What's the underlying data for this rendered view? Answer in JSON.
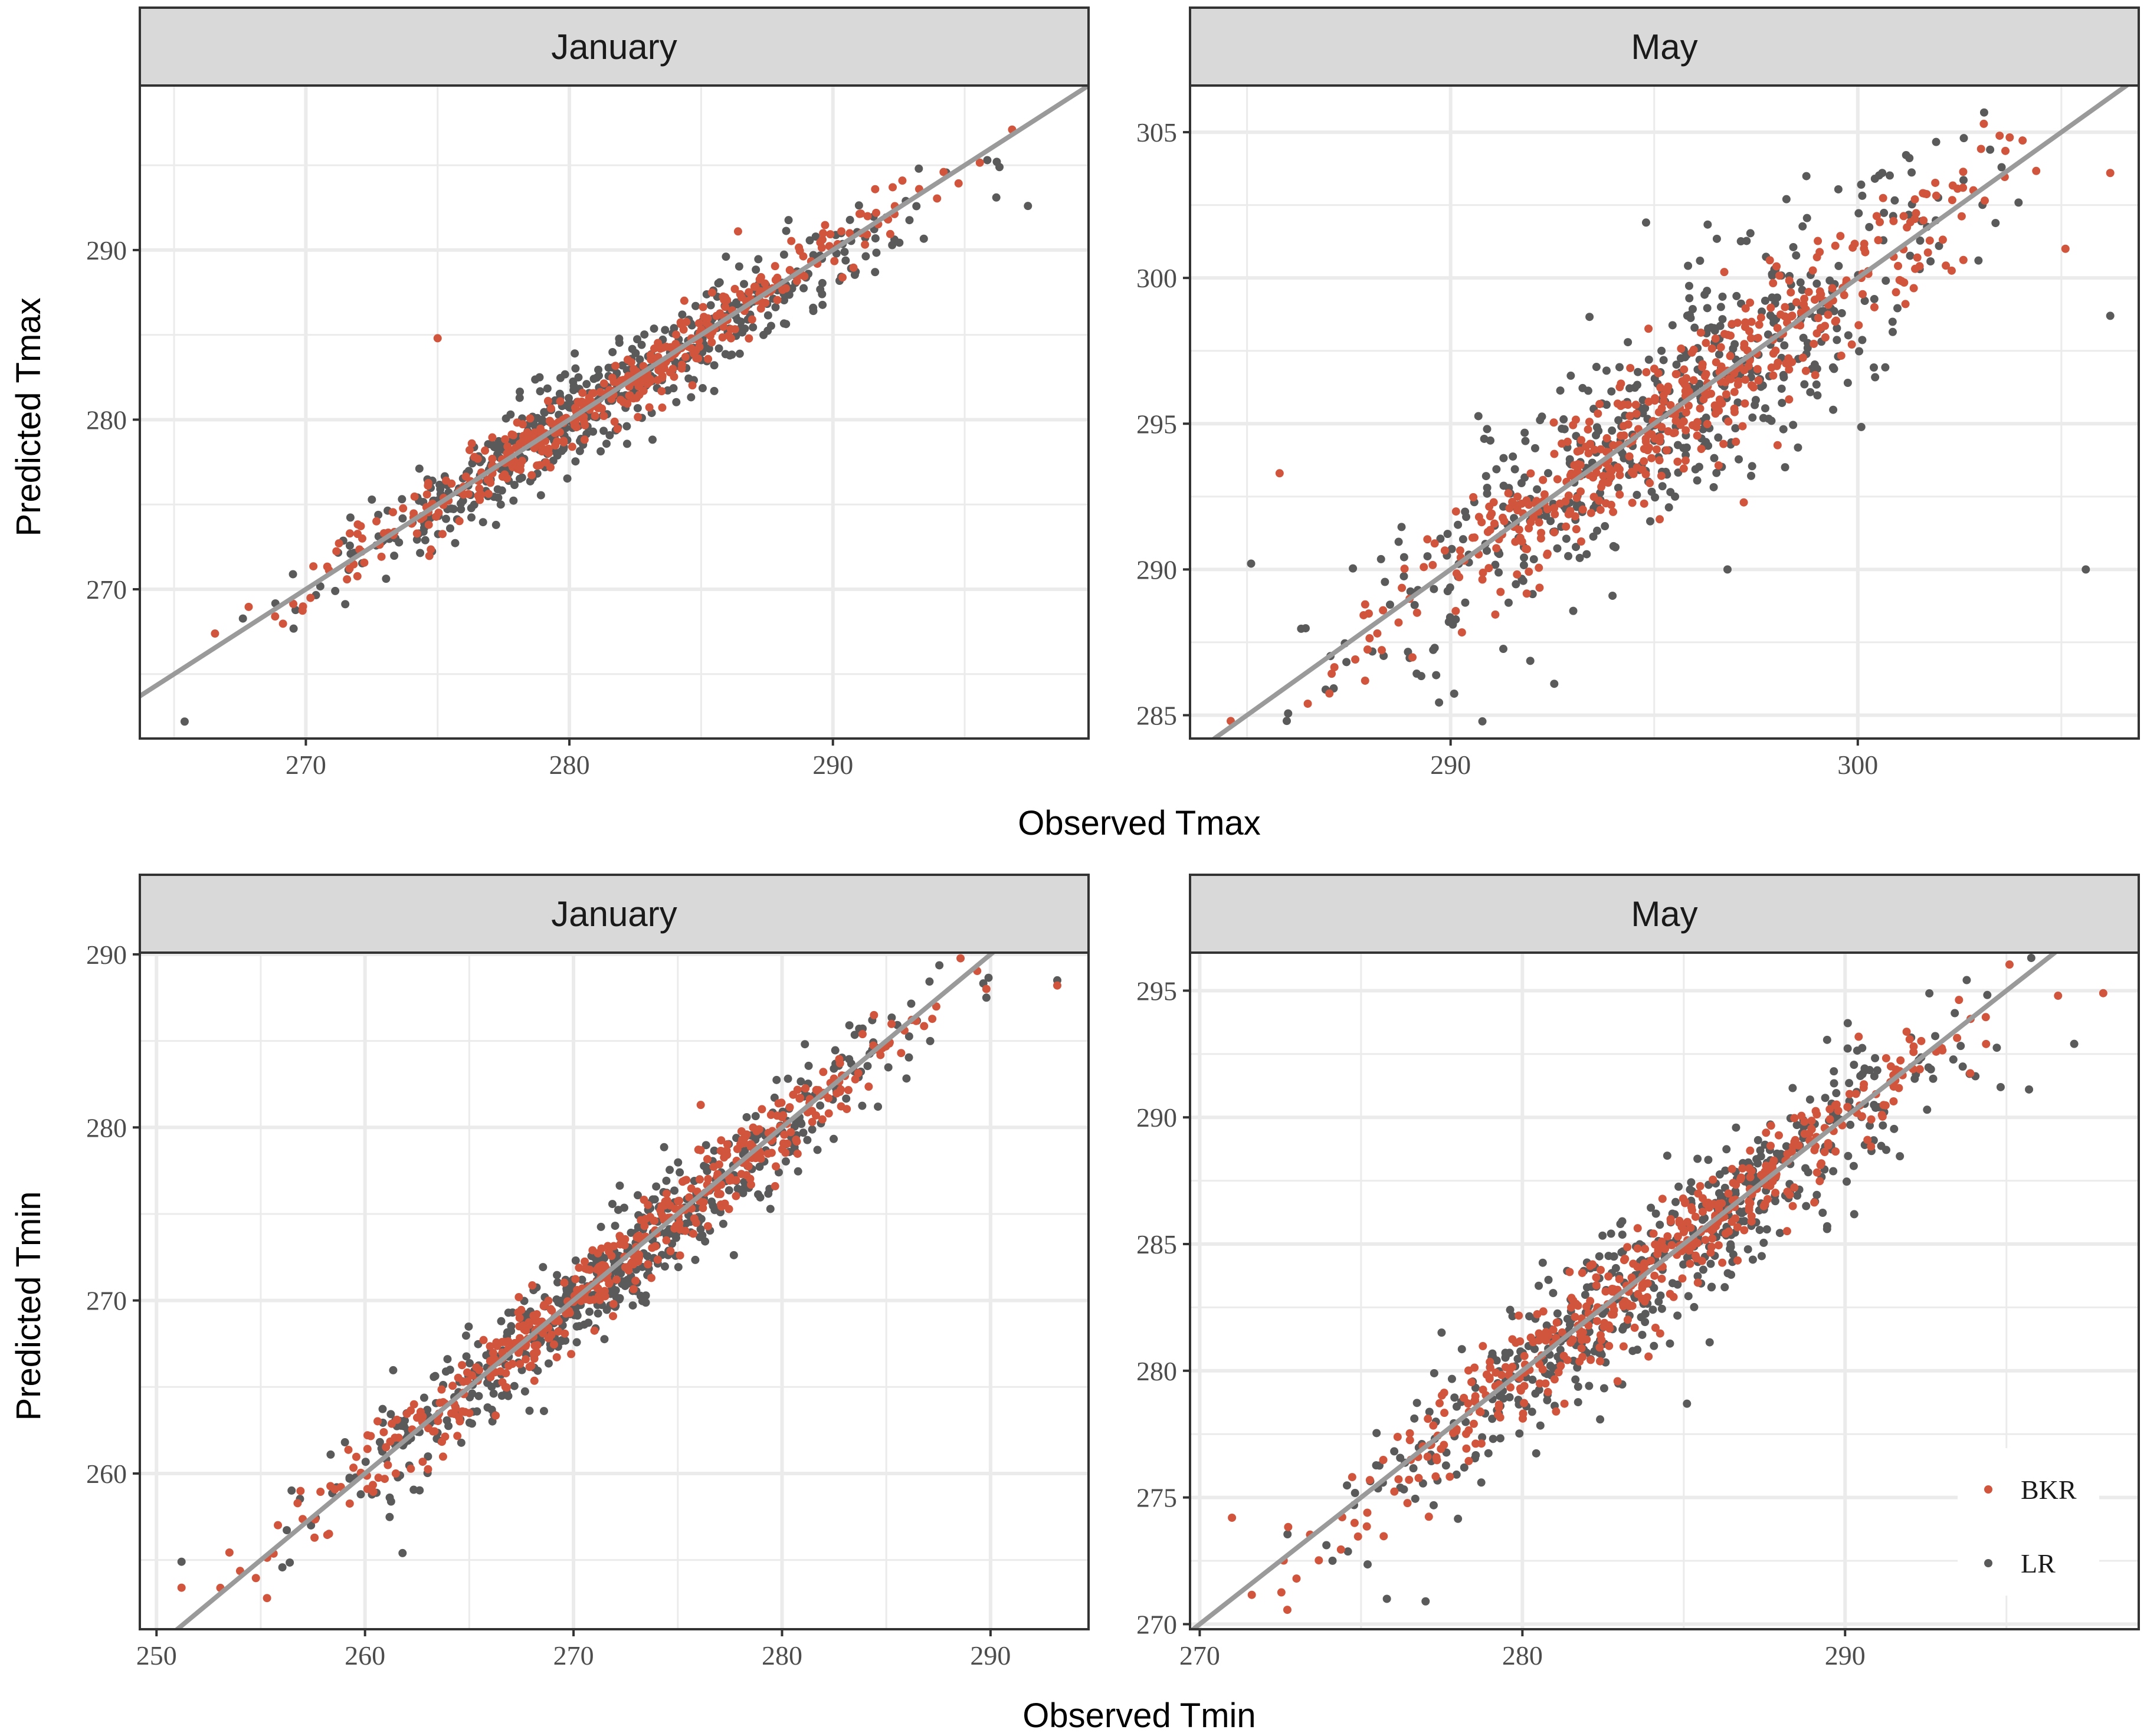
{
  "colors": {
    "BKR": "#d1553d",
    "LR": "#5a5a5a",
    "identity_line": "#9a9a9a",
    "grid": "#ebebeb",
    "strip_fill": "#d9d9d9",
    "border": "#333333"
  },
  "legend": {
    "position": "bottom-right of lower-right panel",
    "items": [
      {
        "label": "BKR",
        "color": "#d1553d"
      },
      {
        "label": "LR",
        "color": "#5a5a5a"
      }
    ]
  },
  "rows": [
    {
      "xlabel": "Observed Tmax",
      "ylabel": "Predicted Tmax"
    },
    {
      "xlabel": "Observed Tmin",
      "ylabel": "Predicted Tmin"
    }
  ],
  "chart_data": [
    {
      "type": "scatter",
      "title": "January",
      "variable": "Tmax",
      "xlim": [
        263.7,
        299.7
      ],
      "ylim": [
        261.2,
        299.7
      ],
      "xticks": [
        270,
        280,
        290
      ],
      "yticks": [
        270,
        280,
        290
      ],
      "identity_line": true,
      "series": [
        {
          "name": "BKR",
          "spread": 0.9,
          "n": 420,
          "range": [
            265.2,
            297.6
          ],
          "outliers": [
            [
              275,
              284.8
            ],
            [
              286.4,
              291.1
            ],
            [
              294.2,
              294.6
            ],
            [
              296.8,
              297.1
            ]
          ]
        },
        {
          "name": "LR",
          "spread": 1.4,
          "n": 520,
          "range": [
            265.2,
            297.6
          ],
          "outliers": [
            [
              265.4,
              262.2
            ],
            [
              297.4,
              292.6
            ],
            [
              296.2,
              293.1
            ],
            [
              291.6,
              288.7
            ]
          ]
        }
      ]
    },
    {
      "type": "scatter",
      "title": "May",
      "variable": "Tmax",
      "xlim": [
        283.6,
        306.9
      ],
      "ylim": [
        284.2,
        306.6
      ],
      "xticks": [
        290,
        300
      ],
      "yticks": [
        285,
        290,
        295,
        300,
        305
      ],
      "identity_line": true,
      "series": [
        {
          "name": "BKR",
          "spread": 1.1,
          "n": 480,
          "range": [
            284.4,
            306.0
          ],
          "outliers": [
            [
              285.8,
              293.3
            ],
            [
              284.6,
              284.8
            ],
            [
              306.2,
              303.6
            ],
            [
              305.1,
              301.0
            ],
            [
              297.2,
              292.3
            ]
          ]
        },
        {
          "name": "LR",
          "spread": 2.0,
          "n": 520,
          "range": [
            284.4,
            306.0
          ],
          "outliers": [
            [
              296.8,
              290.0
            ],
            [
              285.1,
              290.2
            ],
            [
              300.6,
              303.6
            ],
            [
              294.8,
              301.9
            ],
            [
              306.2,
              298.7
            ],
            [
              305.6,
              290.0
            ]
          ]
        }
      ]
    },
    {
      "type": "scatter",
      "title": "January",
      "variable": "Tmin",
      "xlim": [
        249.2,
        294.7
      ],
      "ylim": [
        251.0,
        290.1
      ],
      "xticks": [
        250,
        260,
        270,
        280,
        290
      ],
      "yticks": [
        260,
        270,
        280,
        290
      ],
      "identity_line": true,
      "series": [
        {
          "name": "BKR",
          "spread": 1.1,
          "n": 470,
          "range": [
            251.0,
            293.2
          ],
          "outliers": [
            [
              289.8,
              288.0
            ],
            [
              293.2,
              288.2
            ],
            [
              255.3,
              252.8
            ],
            [
              251.2,
              253.4
            ],
            [
              276.1,
              281.3
            ]
          ]
        },
        {
          "name": "LR",
          "spread": 1.6,
          "n": 540,
          "range": [
            251.0,
            293.2
          ],
          "outliers": [
            [
              289.8,
              287.5
            ],
            [
              293.2,
              288.5
            ],
            [
              251.2,
              254.9
            ],
            [
              261.8,
              255.4
            ],
            [
              284.6,
              281.2
            ]
          ]
        }
      ]
    },
    {
      "type": "scatter",
      "title": "May",
      "variable": "Tmin",
      "xlim": [
        269.7,
        299.1
      ],
      "ylim": [
        269.8,
        296.5
      ],
      "xticks": [
        270,
        280,
        290
      ],
      "yticks": [
        270,
        275,
        280,
        285,
        290,
        295
      ],
      "identity_line": true,
      "series": [
        {
          "name": "BKR",
          "spread": 1.0,
          "n": 470,
          "range": [
            270.6,
            298.0
          ],
          "outliers": [
            [
              298.0,
              294.9
            ],
            [
              296.6,
              294.8
            ],
            [
              271.0,
              274.2
            ],
            [
              273.0,
              271.8
            ]
          ]
        },
        {
          "name": "LR",
          "spread": 1.5,
          "n": 530,
          "range": [
            270.6,
            298.0
          ],
          "outliers": [
            [
              295.7,
              291.1
            ],
            [
              297.1,
              292.9
            ],
            [
              277.0,
              270.9
            ],
            [
              275.8,
              271.0
            ],
            [
              285.1,
              278.7
            ]
          ]
        }
      ]
    }
  ]
}
